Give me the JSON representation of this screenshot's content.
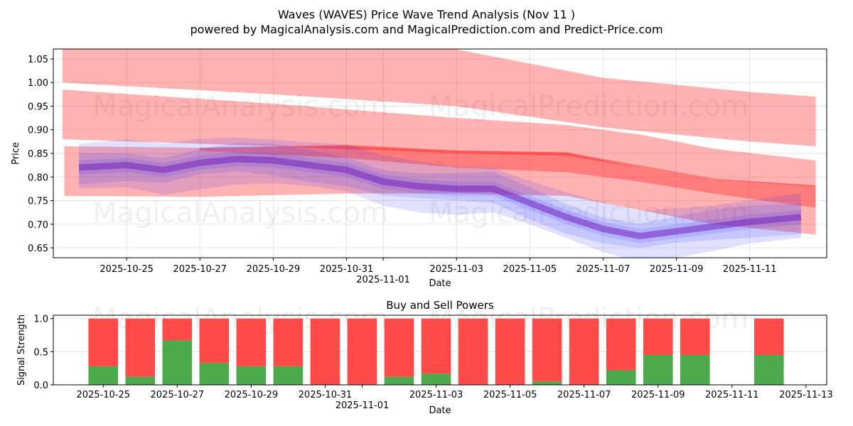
{
  "chart_data": [
    {
      "type": "area",
      "title": "Waves (WAVES) Price Wave Trend Analysis (Nov 11 )",
      "subtitle": "powered by MagicalAnalysis.com and MagicalPrediction.com and Predict-Price.com",
      "xlabel": "Date",
      "ylabel": "Price",
      "ylim": [
        0.629,
        1.071
      ],
      "xlim_days_from_2025_10_25": [
        -2.0,
        19.1
      ],
      "grid": true,
      "x_ticks": [
        "2025-10-25",
        "2025-10-27",
        "2025-10-29",
        "2025-10-31",
        "2025-11-01",
        "2025-11-03",
        "2025-11-05",
        "2025-11-07",
        "2025-11-09",
        "2025-11-11"
      ],
      "x_tick_days": [
        0,
        2,
        4,
        6,
        7,
        9,
        11,
        13,
        15,
        17
      ],
      "y_ticks": [
        "0.65",
        "0.70",
        "0.75",
        "0.80",
        "0.85",
        "0.90",
        "0.95",
        "1.00",
        "1.05"
      ],
      "watermarks": [
        "MagicalAnalysis.com",
        "MagicalPrediction.com"
      ],
      "colors": {
        "forecast_band": "#ff0000",
        "price_band": "#3333ff",
        "purple": "#7722bb"
      },
      "forecast_bands": [
        {
          "days": [
            -1.75,
            4,
            9,
            13,
            17,
            18.8
          ],
          "upper": [
            1.13,
            1.1,
            1.07,
            1.01,
            0.98,
            0.97
          ],
          "lower": [
            1.0,
            0.975,
            0.95,
            0.905,
            0.875,
            0.865
          ]
        },
        {
          "days": [
            -1.75,
            4,
            9,
            12,
            14,
            16,
            18.8
          ],
          "upper": [
            0.985,
            0.955,
            0.925,
            0.91,
            0.89,
            0.86,
            0.835
          ],
          "lower": [
            0.88,
            0.865,
            0.85,
            0.845,
            0.82,
            0.795,
            0.78
          ]
        },
        {
          "days": [
            -1.7,
            2,
            6,
            9,
            12,
            14,
            16,
            18.8
          ],
          "upper": [
            0.865,
            0.862,
            0.866,
            0.856,
            0.852,
            0.82,
            0.795,
            0.782
          ],
          "lower": [
            0.76,
            0.758,
            0.765,
            0.765,
            0.76,
            0.73,
            0.7,
            0.678
          ]
        },
        {
          "days": [
            2,
            6,
            9,
            12,
            14,
            16,
            18.8
          ],
          "upper": [
            0.862,
            0.868,
            0.856,
            0.852,
            0.825,
            0.797,
            0.782
          ],
          "lower": [
            0.855,
            0.84,
            0.82,
            0.81,
            0.79,
            0.765,
            0.735
          ]
        }
      ],
      "price_path": {
        "days": [
          -1.3,
          0,
          1,
          2,
          3,
          4,
          5,
          6,
          7,
          8,
          9,
          10,
          11,
          12,
          13,
          14,
          15,
          16,
          17,
          18.4
        ],
        "values": [
          0.82,
          0.825,
          0.815,
          0.83,
          0.838,
          0.835,
          0.825,
          0.815,
          0.79,
          0.78,
          0.775,
          0.775,
          0.745,
          0.715,
          0.69,
          0.675,
          0.685,
          0.695,
          0.705,
          0.715
        ],
        "band_widths": [
          0.015,
          0.03,
          0.05
        ]
      }
    },
    {
      "type": "bar",
      "title": "Buy and Sell Powers",
      "xlabel": "Date",
      "ylabel": "Signal Strength",
      "ylim": [
        0,
        1.05
      ],
      "xlim_days_from_2025_10_25": [
        -1.35,
        19.56
      ],
      "x_ticks": [
        "2025-10-25",
        "2025-10-27",
        "2025-10-29",
        "2025-10-31",
        "2025-11-01",
        "2025-11-03",
        "2025-11-05",
        "2025-11-07",
        "2025-11-09",
        "2025-11-11",
        "2025-11-13"
      ],
      "x_tick_days": [
        0,
        2,
        4,
        6,
        7,
        9,
        11,
        13,
        15,
        17,
        19
      ],
      "y_ticks": [
        "0.0",
        "0.5",
        "1.0"
      ],
      "colors": {
        "buy": "#4caa4c",
        "sell": "#ff4a4a"
      },
      "categories": [
        "2025-10-25",
        "2025-10-26",
        "2025-10-27",
        "2025-10-28",
        "2025-10-29",
        "2025-10-30",
        "2025-10-31",
        "2025-11-01",
        "2025-11-02",
        "2025-11-03",
        "2025-11-04",
        "2025-11-05",
        "2025-11-06",
        "2025-11-07",
        "2025-11-08",
        "2025-11-09",
        "2025-11-10",
        "2025-11-12"
      ],
      "days": [
        0,
        1,
        2,
        3,
        4,
        5,
        6,
        7,
        8,
        9,
        10,
        11,
        12,
        13,
        14,
        15,
        16,
        18
      ],
      "series": [
        {
          "name": "Buy",
          "values": [
            0.28,
            0.12,
            0.67,
            0.33,
            0.28,
            0.28,
            0,
            0,
            0.12,
            0.17,
            0,
            0,
            0.05,
            0,
            0.22,
            0.45,
            0.45,
            0.45
          ]
        },
        {
          "name": "Sell",
          "values": [
            0.72,
            0.88,
            0.33,
            0.67,
            0.72,
            0.72,
            1,
            1,
            0.88,
            0.83,
            1,
            1,
            0.95,
            1,
            0.78,
            0.55,
            0.55,
            0.55
          ]
        }
      ]
    }
  ]
}
